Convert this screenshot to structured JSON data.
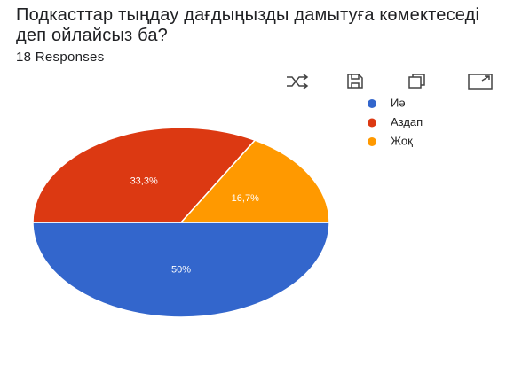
{
  "chart_data": {
    "type": "pie",
    "title": "Подкасттар тыңдау дағдыңызды дамытуға көмектеседі деп ойлайсыз ба?",
    "subtitle": "18 Responses",
    "categories": [
      "Иә",
      "Аздап",
      "Жоқ"
    ],
    "values": [
      50,
      33.3,
      16.7
    ],
    "value_labels": [
      "50%",
      "33,3%",
      "16,7%"
    ],
    "colors": [
      "#3366cc",
      "#dc3912",
      "#ff9900"
    ],
    "legend": "right"
  }
}
